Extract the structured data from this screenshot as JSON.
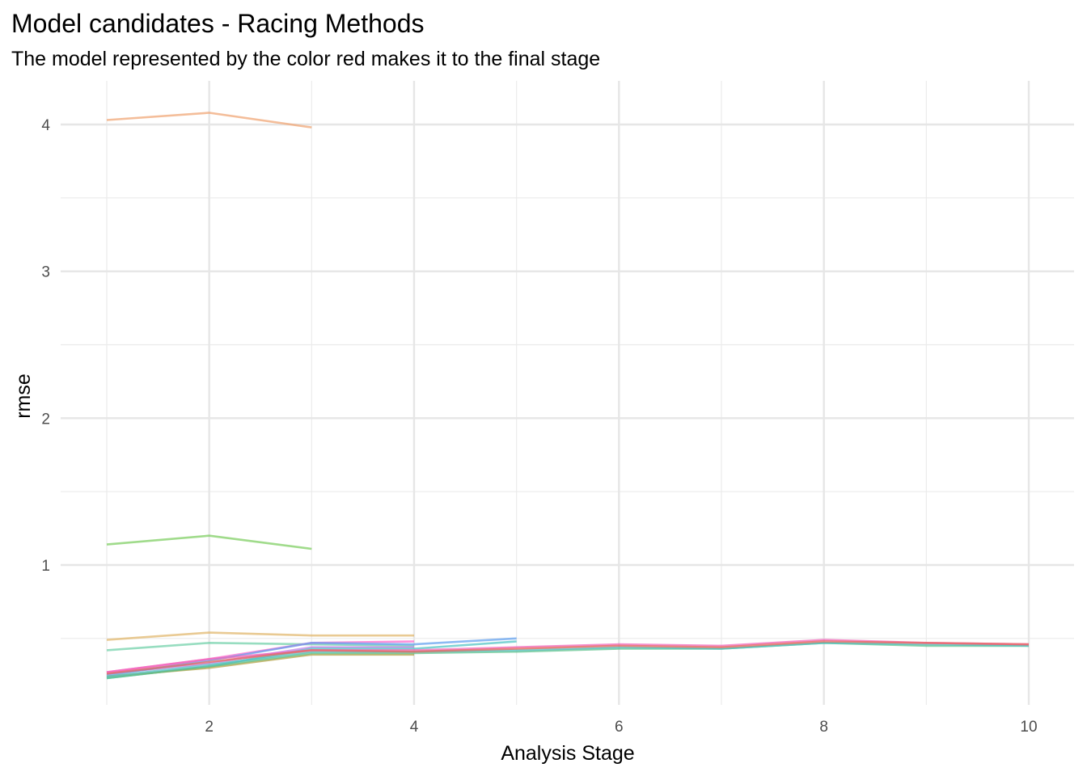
{
  "chart_data": {
    "type": "line",
    "title": "Model candidates - Racing Methods",
    "subtitle": "The model represented by the color red makes it to the final stage",
    "xlabel": "Analysis Stage",
    "ylabel": "rmse",
    "xlim": [
      1,
      10
    ],
    "ylim": [
      0.2,
      4.2
    ],
    "x_ticks": [
      2,
      4,
      6,
      8,
      10
    ],
    "y_ticks": [
      1,
      2,
      3,
      4
    ],
    "grid": true,
    "legend": "none",
    "series": [
      {
        "color": "#f0a371",
        "x": [
          1,
          2,
          3
        ],
        "values": [
          4.03,
          4.08,
          3.98
        ]
      },
      {
        "color": "#7ccd5e",
        "x": [
          1,
          2,
          3
        ],
        "values": [
          1.14,
          1.2,
          1.11
        ]
      },
      {
        "color": "#e0b56a",
        "x": [
          1,
          2,
          3,
          4
        ],
        "values": [
          0.49,
          0.54,
          0.52,
          0.52
        ]
      },
      {
        "color": "#6fd0a8",
        "x": [
          1,
          2,
          3,
          4
        ],
        "values": [
          0.42,
          0.47,
          0.46,
          0.45
        ]
      },
      {
        "color": "#c07ee8",
        "x": [
          1,
          2,
          3,
          4
        ],
        "values": [
          0.26,
          0.33,
          0.44,
          0.44
        ]
      },
      {
        "color": "#ff66cc",
        "x": [
          1,
          2,
          3,
          4
        ],
        "values": [
          0.27,
          0.36,
          0.47,
          0.48
        ]
      },
      {
        "color": "#5fa0ee",
        "x": [
          1,
          2,
          3,
          4,
          5
        ],
        "values": [
          0.25,
          0.35,
          0.47,
          0.46,
          0.5
        ]
      },
      {
        "color": "#4dc4c4",
        "x": [
          1,
          2,
          3,
          4,
          5
        ],
        "values": [
          0.23,
          0.31,
          0.43,
          0.43,
          0.48
        ]
      },
      {
        "color": "#b0a040",
        "x": [
          1,
          2,
          3,
          4
        ],
        "values": [
          0.24,
          0.3,
          0.39,
          0.39
        ]
      },
      {
        "color": "#5cc08a",
        "x": [
          1,
          2,
          3,
          4,
          5,
          6,
          7,
          8,
          9,
          10
        ],
        "values": [
          0.23,
          0.31,
          0.4,
          0.4,
          0.41,
          0.43,
          0.43,
          0.47,
          0.45,
          0.45
        ]
      },
      {
        "color": "#55c0c0",
        "x": [
          1,
          2,
          3,
          4,
          5,
          6,
          7,
          8,
          9,
          10
        ],
        "values": [
          0.24,
          0.32,
          0.41,
          0.41,
          0.42,
          0.44,
          0.43,
          0.47,
          0.46,
          0.45
        ]
      },
      {
        "color": "#f064b8",
        "x": [
          1,
          2,
          3,
          4,
          5,
          6,
          7,
          8,
          9,
          10
        ],
        "values": [
          0.27,
          0.36,
          0.42,
          0.42,
          0.44,
          0.46,
          0.45,
          0.49,
          0.47,
          0.46
        ]
      },
      {
        "color": "#e8655a",
        "x": [
          1,
          2,
          3,
          4,
          5,
          6,
          7,
          8,
          9,
          10
        ],
        "values": [
          0.26,
          0.34,
          0.42,
          0.41,
          0.43,
          0.45,
          0.44,
          0.48,
          0.47,
          0.46
        ]
      }
    ]
  }
}
